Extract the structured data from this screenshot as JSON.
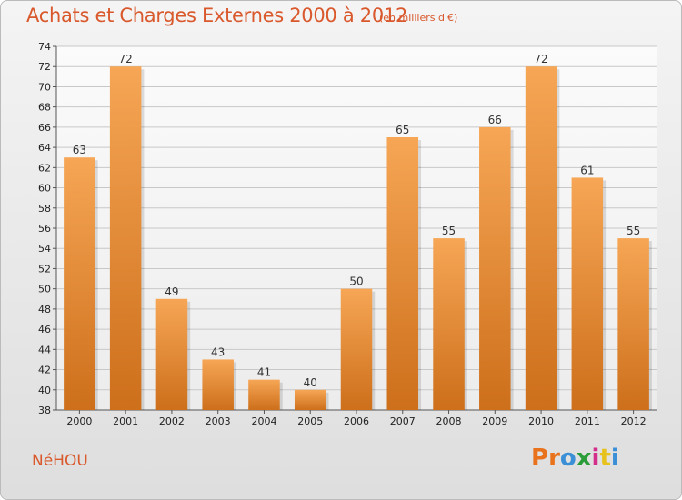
{
  "header": {
    "title": "Achats et Charges Externes 2000 à 2012",
    "subtitle": "(en milliers d'€)"
  },
  "footer": {
    "commune": "NéHOU",
    "logo_text": "Proxiti",
    "logo_colors": [
      "#e8731c",
      "#e8731c",
      "#3a8fd6",
      "#2a9d3a",
      "#d22e8a",
      "#e8c21c",
      "#3a8fd6"
    ]
  },
  "colors": {
    "accent": "#d9582c",
    "bar_top": "#f6a655",
    "bar_bottom": "#cd6f1b",
    "grid": "#c8c8c8"
  },
  "chart_data": {
    "type": "bar",
    "title": "Achats et Charges Externes 2000 à 2012",
    "subtitle": "(en milliers d'€)",
    "categories": [
      "2000",
      "2001",
      "2002",
      "2003",
      "2004",
      "2005",
      "2006",
      "2007",
      "2008",
      "2009",
      "2010",
      "2011",
      "2012"
    ],
    "values": [
      63,
      72,
      49,
      43,
      41,
      40,
      50,
      65,
      55,
      66,
      72,
      61,
      55
    ],
    "ylim": [
      38,
      74
    ],
    "yticks": [
      38,
      40,
      42,
      44,
      46,
      48,
      50,
      52,
      54,
      56,
      58,
      60,
      62,
      64,
      66,
      68,
      70,
      72,
      74
    ],
    "grid": true,
    "xlabel": "",
    "ylabel": ""
  }
}
